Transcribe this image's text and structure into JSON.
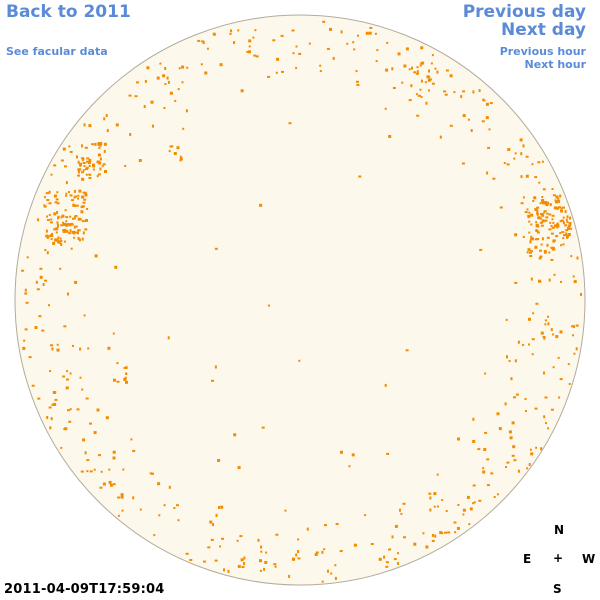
{
  "nav": {
    "back_to_year": "Back to 2011",
    "see_facular": "See facular data",
    "previous_day": "Previous day",
    "next_day": "Next day",
    "previous_hour": "Previous hour",
    "next_hour": "Next hour"
  },
  "compass": {
    "north": "N",
    "east": "E",
    "center": "+",
    "west": "W",
    "south": "S"
  },
  "timestamp": "2011-04-09T17:59:04",
  "colors": {
    "disk_fill": "#fdf8ec",
    "disk_edge": "#b3ab9c",
    "facula": "#f28c00",
    "link": "#5b8bd6"
  }
}
